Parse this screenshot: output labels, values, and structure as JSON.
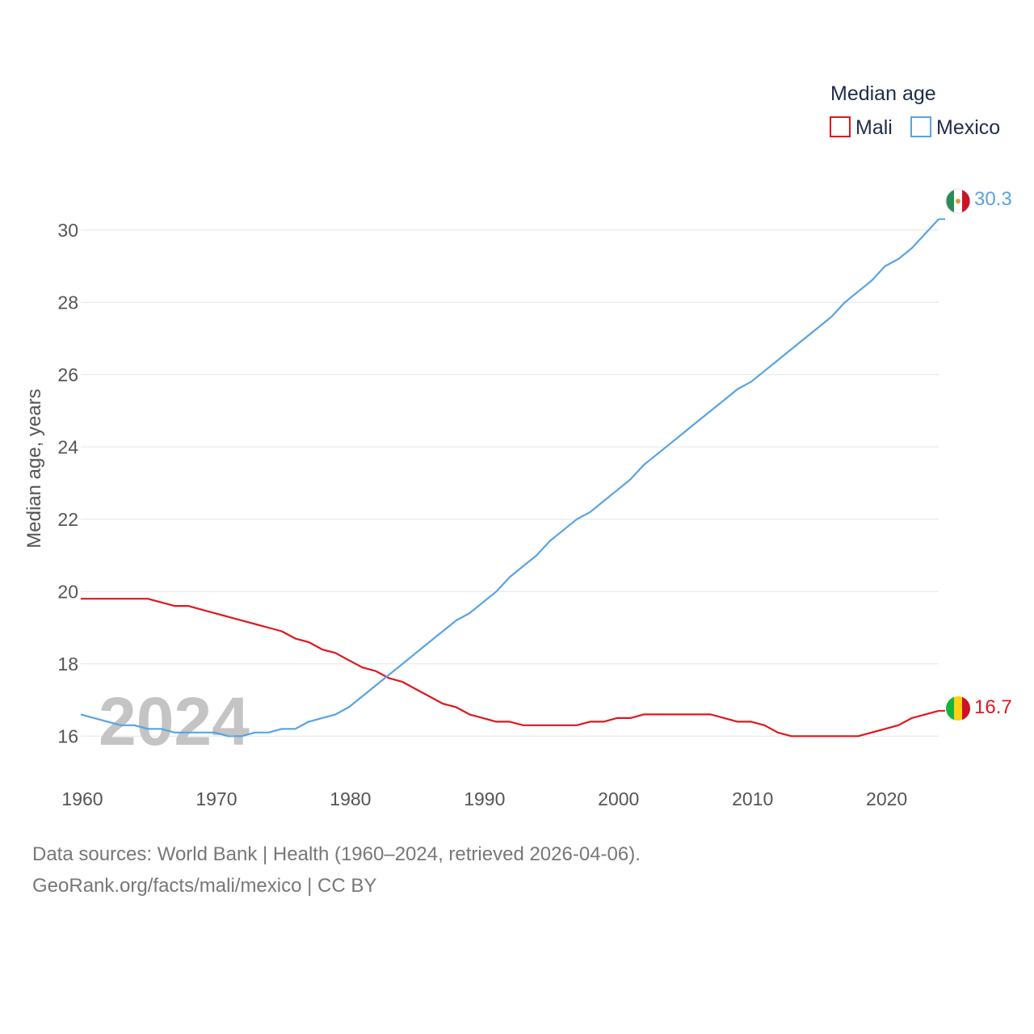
{
  "chart_data": {
    "type": "line",
    "title": "Median age",
    "ylabel": "Median age, years",
    "xlabel": "",
    "xlim": [
      1960,
      2024
    ],
    "ylim": [
      15,
      31
    ],
    "x_ticks": [
      1960,
      1970,
      1980,
      1990,
      2000,
      2010,
      2020
    ],
    "y_ticks": [
      16,
      18,
      20,
      22,
      24,
      26,
      28,
      30
    ],
    "grid": true,
    "legend_position": "top-right",
    "year_label": "2024",
    "x": [
      1960,
      1961,
      1962,
      1963,
      1964,
      1965,
      1966,
      1967,
      1968,
      1969,
      1970,
      1971,
      1972,
      1973,
      1974,
      1975,
      1976,
      1977,
      1978,
      1979,
      1980,
      1981,
      1982,
      1983,
      1984,
      1985,
      1986,
      1987,
      1988,
      1989,
      1990,
      1991,
      1992,
      1993,
      1994,
      1995,
      1996,
      1997,
      1998,
      1999,
      2000,
      2001,
      2002,
      2003,
      2004,
      2005,
      2006,
      2007,
      2008,
      2009,
      2010,
      2011,
      2012,
      2013,
      2014,
      2015,
      2016,
      2017,
      2018,
      2019,
      2020,
      2021,
      2022,
      2023,
      2024
    ],
    "series": [
      {
        "name": "Mali",
        "color": "#e0161e",
        "end_label": "16.7",
        "values": [
          19.8,
          19.8,
          19.8,
          19.8,
          19.8,
          19.8,
          19.7,
          19.6,
          19.6,
          19.5,
          19.4,
          19.3,
          19.2,
          19.1,
          19.0,
          18.9,
          18.7,
          18.6,
          18.4,
          18.3,
          18.1,
          17.9,
          17.8,
          17.6,
          17.5,
          17.3,
          17.1,
          16.9,
          16.8,
          16.6,
          16.5,
          16.4,
          16.4,
          16.3,
          16.3,
          16.3,
          16.3,
          16.3,
          16.4,
          16.4,
          16.5,
          16.5,
          16.6,
          16.6,
          16.6,
          16.6,
          16.6,
          16.6,
          16.5,
          16.4,
          16.4,
          16.3,
          16.1,
          16.0,
          16.0,
          16.0,
          16.0,
          16.0,
          16.0,
          16.1,
          16.2,
          16.3,
          16.5,
          16.6,
          16.7
        ]
      },
      {
        "name": "Mexico",
        "color": "#5aa2e4",
        "end_label": "30.3",
        "values": [
          16.6,
          16.5,
          16.4,
          16.3,
          16.3,
          16.2,
          16.2,
          16.1,
          16.1,
          16.1,
          16.1,
          16.0,
          16.0,
          16.1,
          16.1,
          16.2,
          16.2,
          16.4,
          16.5,
          16.6,
          16.8,
          17.1,
          17.4,
          17.7,
          18.0,
          18.3,
          18.6,
          18.9,
          19.2,
          19.4,
          19.7,
          20.0,
          20.4,
          20.7,
          21.0,
          21.4,
          21.7,
          22.0,
          22.2,
          22.5,
          22.8,
          23.1,
          23.5,
          23.8,
          24.1,
          24.4,
          24.7,
          25.0,
          25.3,
          25.6,
          25.8,
          26.1,
          26.4,
          26.7,
          27.0,
          27.3,
          27.6,
          28.0,
          28.3,
          28.6,
          29.0,
          29.2,
          29.5,
          29.9,
          30.3
        ]
      }
    ]
  },
  "footer": {
    "line1": "Data sources: World Bank | Health (1960–2024, retrieved 2026-04-06).",
    "line2": "GeoRank.org/facts/mali/mexico | CC BY"
  }
}
